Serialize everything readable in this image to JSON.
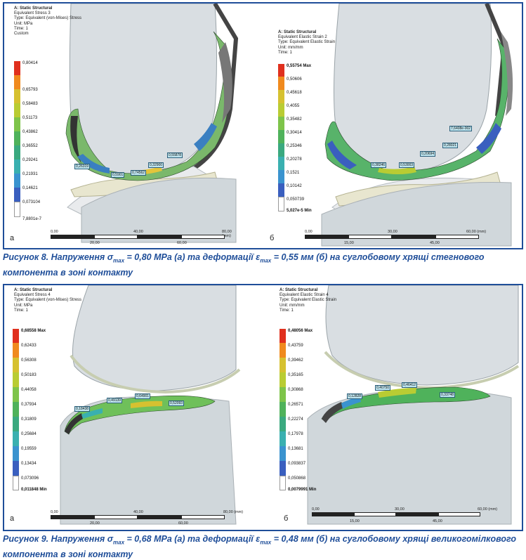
{
  "figures": [
    {
      "caption_pre": "Рисунок 8. Напруження σ",
      "caption_sub1": "max",
      "caption_mid": " = 0,80 МРа (а) та деформації ε",
      "caption_sub2": "max",
      "caption_post": " = 0,55 мм (б) на суглобовому хрящі стегнового компонента в зоні контакту",
      "panels": [
        {
          "letter": "а",
          "info": [
            "A: Static Structural",
            "Equivalent Stress 3",
            "Type: Equivalent (von-Mises) Stress",
            "Unit: MPa",
            "Time: 1",
            "Custom"
          ],
          "legend": [
            "0,80414",
            "0,65793",
            "0,58483",
            "0,51173",
            "0,43862",
            "0,36552",
            "0,29241",
            "0,21931",
            "0,14621",
            "0,073104",
            "7,8801e-7"
          ],
          "callouts": [
            "0,26319",
            "0,5901",
            "0,74562",
            "0,32900",
            "0,55878"
          ],
          "scale_top": [
            "0,00",
            "40,00",
            "80,00 (mm)"
          ],
          "scale_bot": [
            "20,00",
            "60,00"
          ]
        },
        {
          "letter": "б",
          "info": [
            "A: Static Structural",
            "Equivalent Elastic Strain 2",
            "Type: Equivalent Elastic Strain",
            "Unit: mm/mm",
            "Time: 1"
          ],
          "legend": [
            "0,55754 Max",
            "0,50606",
            "0,45618",
            "0,4055",
            "0,35482",
            "0,30414",
            "0,25346",
            "0,20278",
            "0,1521",
            "0,10142",
            "0,050739",
            "5,027e-5 Min"
          ],
          "callouts": [
            "0,38246",
            "0,53003",
            "0,20694",
            "0,28021",
            "7,6408e-002"
          ],
          "scale_top": [
            "0,00",
            "30,00",
            "60,00 (mm)"
          ],
          "scale_bot": [
            "15,00",
            "45,00"
          ]
        }
      ]
    },
    {
      "caption_pre": "Рисунок 9. Напруження σ",
      "caption_sub1": "max",
      "caption_mid": " = 0,68 МРа (а) та деформації ε",
      "caption_sub2": "max",
      "caption_post": " = 0,48 мм (б) на суглобовому хрящі великогомілкового компонента в зоні контакту",
      "panels": [
        {
          "letter": "а",
          "info": [
            "A: Static Structural",
            "Equivalent Stress 4",
            "Type: Equivalent (von-Mises) Stress",
            "Unit: MPa",
            "Time: 1"
          ],
          "legend": [
            "0,68558 Max",
            "0,62433",
            "0,56308",
            "0,50183",
            "0,44058",
            "0,37934",
            "0,31809",
            "0,25684",
            "0,19559",
            "0,13434",
            "0,073096",
            "0,011848 Min"
          ],
          "callouts": [
            "0,18438",
            "0,49139",
            "0,64901",
            "0,52093"
          ],
          "scale_top": [
            "0,00",
            "40,00",
            "80,00 (mm)"
          ],
          "scale_bot": [
            "20,00",
            "60,00"
          ]
        },
        {
          "letter": "б",
          "info": [
            "A: Static Structural",
            "Equivalent Elastic Strain 4",
            "Type: Equivalent Elastic Strain",
            "Unit: mm/mm",
            "Time: 1"
          ],
          "legend": [
            "0,48056 Max",
            "0,43759",
            "0,39462",
            "0,35165",
            "0,30868",
            "0,26571",
            "0,22274",
            "0,17978",
            "0,13681",
            "0,093837",
            "0,050868",
            "0,0079991 Min"
          ],
          "callouts": [
            "0,12828",
            "0,40750",
            "0,46412",
            "0,33748"
          ],
          "scale_top": [
            "0,00",
            "30,00",
            "60,00 (mm)"
          ],
          "scale_bot": [
            "15,00",
            "45,00"
          ]
        }
      ]
    }
  ],
  "colors": {
    "frame": "#1f4e99",
    "bone": "#d9dee2",
    "cartilage": "#e8e6cf"
  }
}
